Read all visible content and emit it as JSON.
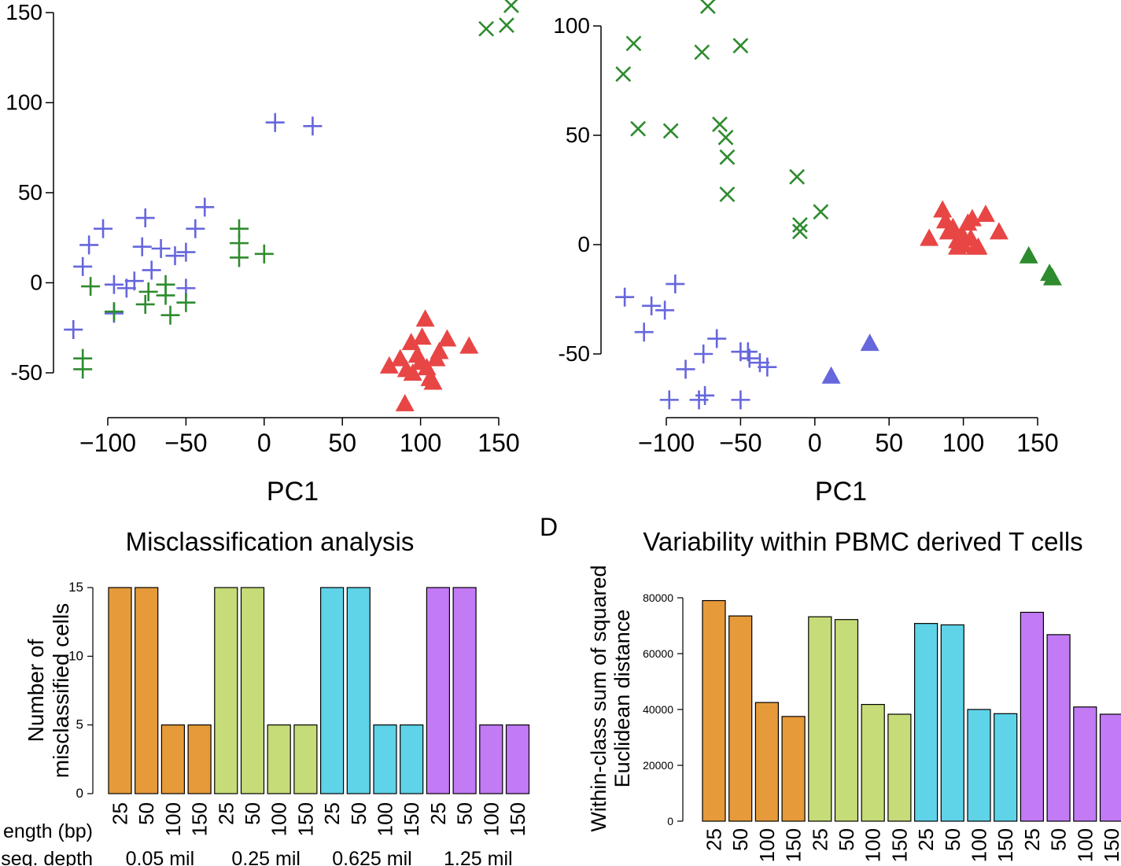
{
  "colors": {
    "blue": "#6666dd",
    "green": "#2e8b2e",
    "red": "#e84545",
    "orange": "#e69a3a",
    "lightgreen": "#c6dc78",
    "cyan": "#5fd3e8",
    "purple": "#c27af5"
  },
  "panel_labels": {
    "d": "D"
  },
  "chart_data": [
    {
      "type": "scatter",
      "xlabel": "PC1",
      "xticks": [
        "−100",
        "−50",
        "0",
        "50",
        "100",
        "150"
      ],
      "xtick_values": [
        -100,
        -50,
        0,
        50,
        100,
        150
      ],
      "yticks": [
        "-50",
        "0",
        "50",
        "100",
        "150"
      ],
      "ytick_values": [
        -50,
        0,
        50,
        100,
        150
      ],
      "xlim": [
        -135,
        162
      ],
      "ylim": [
        -70,
        157
      ],
      "series": [
        {
          "color": "blue",
          "marker": "plus",
          "points": [
            [
              -122,
              -26
            ],
            [
              -116,
              9
            ],
            [
              -112,
              21
            ],
            [
              -103,
              30
            ],
            [
              -96,
              -1
            ],
            [
              -96,
              -17
            ],
            [
              -88,
              -3
            ],
            [
              -83,
              1
            ],
            [
              -76,
              36
            ],
            [
              -78,
              20
            ],
            [
              -72,
              7
            ],
            [
              -66,
              19
            ],
            [
              -57,
              15
            ],
            [
              -50,
              17
            ],
            [
              -50,
              -3
            ],
            [
              -44,
              30
            ],
            [
              -38,
              42
            ],
            [
              7,
              89
            ],
            [
              31,
              87
            ]
          ]
        },
        {
          "color": "green",
          "marker": "plus",
          "points": [
            [
              -116,
              -48
            ],
            [
              -116,
              -42
            ],
            [
              -111,
              -2
            ],
            [
              -96,
              -16
            ],
            [
              -76,
              -12
            ],
            [
              -74,
              -5
            ],
            [
              -63,
              -1
            ],
            [
              -63,
              -7
            ],
            [
              -60,
              -18
            ],
            [
              -50,
              -11
            ],
            [
              -16,
              30
            ],
            [
              -16,
              22
            ],
            [
              -16,
              14
            ],
            [
              0,
              16
            ]
          ]
        },
        {
          "color": "green",
          "marker": "x",
          "points": [
            [
              142,
              141
            ],
            [
              155,
              143
            ],
            [
              158,
              154
            ]
          ]
        },
        {
          "color": "red",
          "marker": "triangle",
          "points": [
            [
              80,
              -46
            ],
            [
              87,
              -42
            ],
            [
              91,
              -48
            ],
            [
              94,
              -33
            ],
            [
              98,
              -40
            ],
            [
              100,
              -44
            ],
            [
              101,
              -30
            ],
            [
              103,
              -20
            ],
            [
              104,
              -47
            ],
            [
              106,
              -53
            ],
            [
              110,
              -42
            ],
            [
              112,
              -38
            ],
            [
              117,
              -31
            ],
            [
              131,
              -35
            ],
            [
              90,
              -67
            ],
            [
              108,
              -55
            ],
            [
              95,
              -50
            ]
          ]
        }
      ]
    },
    {
      "type": "scatter",
      "xlabel": "PC1",
      "xticks": [
        "−100",
        "−50",
        "0",
        "50",
        "100",
        "150"
      ],
      "xtick_values": [
        -100,
        -50,
        0,
        50,
        100,
        150
      ],
      "yticks": [
        "-50",
        "0",
        "50",
        "100"
      ],
      "ytick_values": [
        -50,
        0,
        50,
        100
      ],
      "xlim": [
        -128,
        165
      ],
      "ylim": [
        -75,
        110
      ],
      "series": [
        {
          "color": "green",
          "marker": "x",
          "points": [
            [
              -129,
              78
            ],
            [
              -122,
              92
            ],
            [
              -119,
              53
            ],
            [
              -97,
              52
            ],
            [
              -72,
              109
            ],
            [
              -76,
              88
            ],
            [
              -50,
              91
            ],
            [
              -64,
              55
            ],
            [
              -60,
              49
            ],
            [
              -59,
              40
            ],
            [
              -59,
              23
            ],
            [
              -12,
              31
            ],
            [
              -10,
              9
            ],
            [
              -10,
              6
            ],
            [
              4,
              15
            ]
          ]
        },
        {
          "color": "blue",
          "marker": "plus",
          "points": [
            [
              -128,
              -24
            ],
            [
              -115,
              -40
            ],
            [
              -110,
              -28
            ],
            [
              -101,
              -30
            ],
            [
              -94,
              -18
            ],
            [
              -98,
              -71
            ],
            [
              -87,
              -57
            ],
            [
              -78,
              -71
            ],
            [
              -74,
              -69
            ],
            [
              -75,
              -50
            ],
            [
              -66,
              -43
            ],
            [
              -50,
              -49
            ],
            [
              -50,
              -71
            ],
            [
              -45,
              -49
            ],
            [
              -44,
              -52
            ],
            [
              -37,
              -54
            ],
            [
              -32,
              -56
            ]
          ]
        },
        {
          "color": "red",
          "marker": "triangle",
          "points": [
            [
              77,
              3
            ],
            [
              86,
              16
            ],
            [
              88,
              11
            ],
            [
              90,
              6
            ],
            [
              93,
              8
            ],
            [
              96,
              2
            ],
            [
              99,
              5
            ],
            [
              100,
              0
            ],
            [
              103,
              10
            ],
            [
              105,
              3
            ],
            [
              106,
              12
            ],
            [
              110,
              -1
            ],
            [
              115,
              14
            ],
            [
              124,
              6
            ],
            [
              96,
              -1
            ],
            [
              108,
              -1
            ]
          ]
        },
        {
          "color": "green",
          "marker": "triangle",
          "points": [
            [
              144,
              -5
            ],
            [
              158,
              -13
            ],
            [
              160,
              -15
            ]
          ]
        },
        {
          "color": "blue",
          "marker": "triangle",
          "points": [
            [
              11,
              -60
            ],
            [
              37,
              -45
            ]
          ]
        }
      ]
    },
    {
      "type": "bar",
      "title": "Misclassification analysis",
      "ylabel_lines": [
        "Number of",
        "misclassified cells"
      ],
      "categories": [
        "25",
        "50",
        "100",
        "150",
        "25",
        "50",
        "100",
        "150",
        "25",
        "50",
        "100",
        "150",
        "25",
        "50",
        "100",
        "150"
      ],
      "values": [
        15,
        15,
        5,
        5,
        15,
        15,
        5,
        5,
        15,
        15,
        5,
        5,
        15,
        15,
        5,
        5
      ],
      "bar_colors": [
        "orange",
        "orange",
        "orange",
        "orange",
        "lightgreen",
        "lightgreen",
        "lightgreen",
        "lightgreen",
        "cyan",
        "cyan",
        "cyan",
        "cyan",
        "purple",
        "purple",
        "purple",
        "purple"
      ],
      "yticks": [
        "0",
        "5",
        "10",
        "15"
      ],
      "ytick_values": [
        0,
        5,
        10,
        15
      ],
      "ylim": [
        0,
        15
      ],
      "row_labels": [
        "ength (bp)",
        "seq. depth"
      ],
      "group_labels": [
        "0.05 mil",
        "0.25 mil",
        "0.625 mil",
        "1.25 mil"
      ]
    },
    {
      "type": "bar",
      "title": "Variability within PBMC derived T cells",
      "ylabel_lines": [
        "Within-class sum of squared",
        "Euclidean distance"
      ],
      "categories": [
        "25",
        "50",
        "100",
        "150",
        "25",
        "50",
        "100",
        "150",
        "25",
        "50",
        "100",
        "150",
        "25",
        "50",
        "100",
        "150"
      ],
      "values": [
        79000,
        73500,
        42500,
        37500,
        73200,
        72200,
        41800,
        38300,
        70800,
        70300,
        40000,
        38500,
        74800,
        66800,
        40900,
        38300
      ],
      "bar_colors": [
        "orange",
        "orange",
        "orange",
        "orange",
        "lightgreen",
        "lightgreen",
        "lightgreen",
        "lightgreen",
        "cyan",
        "cyan",
        "cyan",
        "cyan",
        "purple",
        "purple",
        "purple",
        "purple"
      ],
      "yticks": [
        "0",
        "20000",
        "40000",
        "60000",
        "80000"
      ],
      "ytick_values": [
        0,
        20000,
        40000,
        60000,
        80000
      ],
      "ylim": [
        0,
        80000
      ]
    }
  ]
}
